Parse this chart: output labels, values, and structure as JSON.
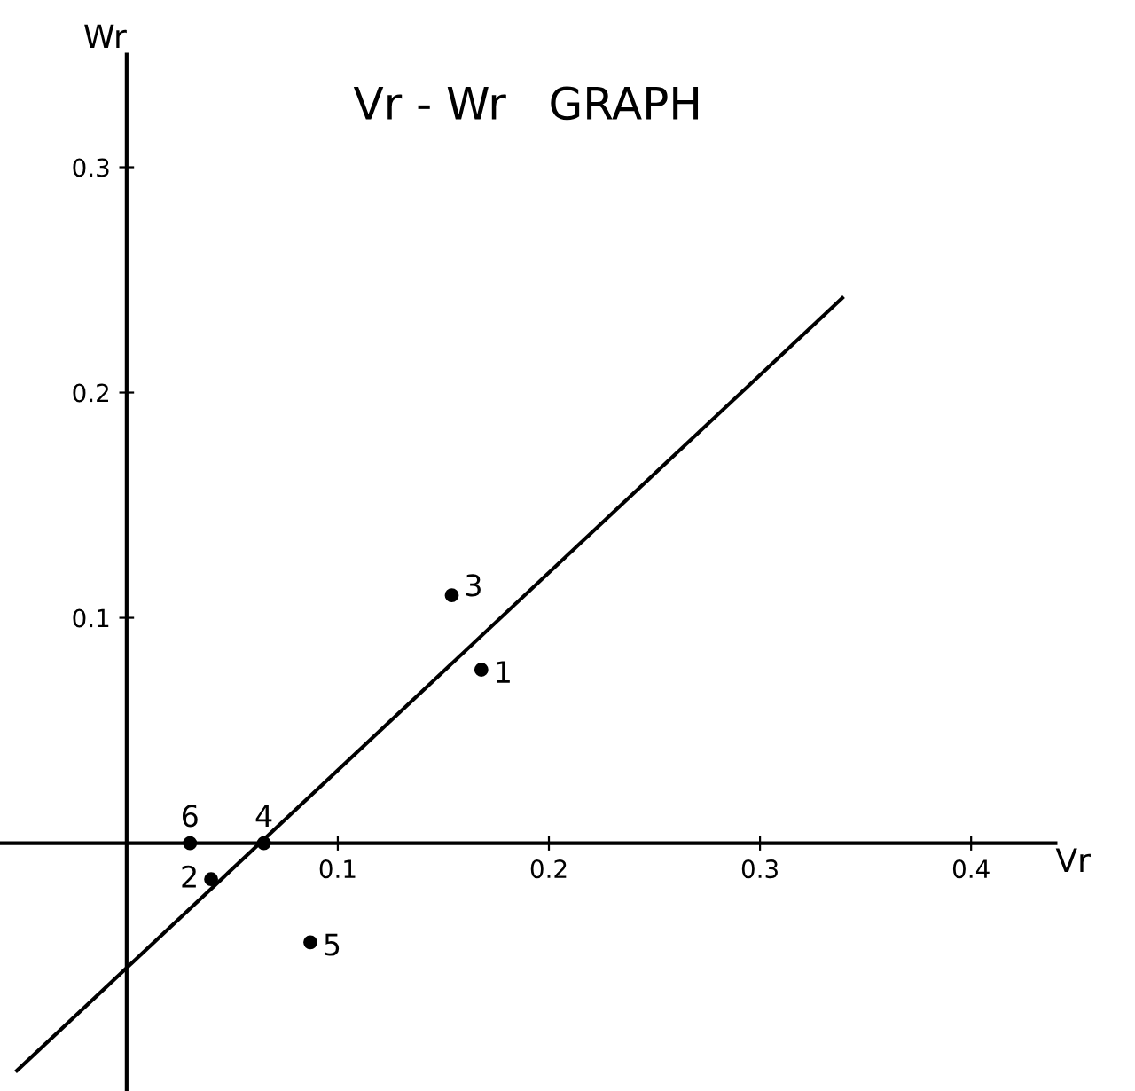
{
  "chart_data": {
    "type": "scatter",
    "title": "Vr - Wr   GRAPH",
    "xlabel": "Vr",
    "ylabel": "Wr",
    "xlim": [
      -0.06,
      0.44
    ],
    "ylim": [
      -0.11,
      0.35
    ],
    "xticks": [
      0.1,
      0.2,
      0.3,
      0.4
    ],
    "yticks": [
      0.1,
      0.2,
      0.3
    ],
    "grid": false,
    "legend": false,
    "series": [
      {
        "marker": "circle",
        "color": "#000000",
        "x": [
          0.168,
          0.04,
          0.154,
          0.065,
          0.087,
          0.03
        ],
        "values": [
          0.077,
          -0.016,
          0.11,
          0,
          -0.044,
          0
        ]
      },
      {
        "type": "line",
        "color": "#000000",
        "x": [
          -0.052,
          0.339
        ],
        "values": [
          -0.101,
          0.242
        ],
        "line_style": "solid",
        "marker": "none"
      }
    ],
    "annotations": [
      {
        "text": "1",
        "x": 0.168,
        "y": 0.077
      },
      {
        "text": "2",
        "x": 0.04,
        "y": -0.016
      },
      {
        "text": "3",
        "x": 0.154,
        "y": 0.11
      },
      {
        "text": "4",
        "x": 0.065,
        "y": 0
      },
      {
        "text": "5",
        "x": 0.087,
        "y": -0.044
      },
      {
        "text": "6",
        "x": 0.03,
        "y": 0
      }
    ]
  }
}
